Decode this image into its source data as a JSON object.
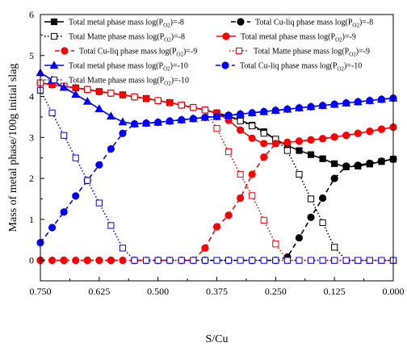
{
  "chart_data": {
    "type": "line",
    "title": "",
    "xlabel": "S/Cu",
    "ylabel": "Mass of metal phase/100g initial slag",
    "xlim": [
      0.75,
      0.0
    ],
    "x_reversed": true,
    "ylim": [
      -0.5,
      6
    ],
    "xticks": [
      "0.750",
      "0.625",
      "0.500",
      "0.375",
      "0.250",
      "0.125",
      "0.000"
    ],
    "yticks": [
      "0",
      "1",
      "2",
      "3",
      "4",
      "5",
      "6"
    ],
    "grid": false,
    "legend": "top",
    "series": [
      {
        "name": "Total metal phase mass log(P",
        "sub": "O2",
        "suffix": ")=-8",
        "color": "#000000",
        "line": "solid",
        "marker": "square-filled",
        "x": [
          0.75,
          0.725,
          0.7,
          0.675,
          0.65,
          0.625,
          0.6,
          0.575,
          0.55,
          0.525,
          0.5,
          0.475,
          0.45,
          0.425,
          0.4,
          0.375,
          0.35,
          0.325,
          0.3,
          0.275,
          0.25,
          0.225,
          0.2,
          0.175,
          0.15,
          0.125,
          0.1,
          0.075,
          0.05,
          0.025,
          0.0
        ],
        "y": [
          4.33,
          4.29,
          4.25,
          4.21,
          4.17,
          4.12,
          4.08,
          4.04,
          3.99,
          3.95,
          3.9,
          3.85,
          3.79,
          3.73,
          3.67,
          3.6,
          3.52,
          3.42,
          3.3,
          3.14,
          2.95,
          2.8,
          2.68,
          2.58,
          2.48,
          2.36,
          2.28,
          2.3,
          2.35,
          2.41,
          2.47
        ]
      },
      {
        "name": "Total Cu-liq phase mass log(P",
        "sub": "O2",
        "suffix": ")=-8",
        "color": "#000000",
        "line": "dashed",
        "marker": "circle-filled",
        "x": [
          0.75,
          0.7,
          0.65,
          0.6,
          0.55,
          0.5,
          0.45,
          0.4,
          0.35,
          0.3,
          0.25,
          0.225,
          0.2,
          0.175,
          0.15,
          0.125,
          0.1,
          0.075,
          0.05,
          0.025,
          0.0
        ],
        "y": [
          0,
          0,
          0,
          0,
          0,
          0,
          0,
          0,
          0,
          0,
          0,
          0.08,
          0.55,
          1.05,
          1.52,
          2.0,
          2.3,
          2.32,
          2.37,
          2.42,
          2.47
        ]
      },
      {
        "name": "Total Matte phase mass log(P",
        "sub": "O2",
        "suffix": ")=-8",
        "color": "#000000",
        "line": "dotted",
        "marker": "square-open",
        "x": [
          0.75,
          0.7,
          0.65,
          0.6,
          0.55,
          0.525,
          0.5,
          0.475,
          0.45,
          0.425,
          0.4,
          0.375,
          0.35,
          0.325,
          0.3,
          0.275,
          0.25,
          0.225,
          0.2,
          0.175,
          0.15,
          0.125,
          0.1,
          0.075,
          0.05,
          0.025,
          0.0
        ],
        "y": [
          4.33,
          4.25,
          4.17,
          4.08,
          3.99,
          3.95,
          3.9,
          3.85,
          3.79,
          3.73,
          3.67,
          3.58,
          3.5,
          3.4,
          3.28,
          3.1,
          2.96,
          2.68,
          2.1,
          1.5,
          0.92,
          0.32,
          0,
          0,
          0,
          0,
          0
        ]
      },
      {
        "name": "Total metal phase mass log(P",
        "sub": "O2",
        "suffix": ")=-9",
        "color": "#ff0000",
        "line": "solid",
        "marker": "circle-filled",
        "x": [
          0.75,
          0.725,
          0.7,
          0.675,
          0.65,
          0.625,
          0.6,
          0.575,
          0.55,
          0.525,
          0.5,
          0.475,
          0.45,
          0.425,
          0.4,
          0.375,
          0.35,
          0.325,
          0.3,
          0.275,
          0.25,
          0.225,
          0.2,
          0.175,
          0.15,
          0.125,
          0.1,
          0.075,
          0.05,
          0.025,
          0.0
        ],
        "y": [
          4.33,
          4.29,
          4.25,
          4.21,
          4.17,
          4.12,
          4.08,
          4.04,
          3.99,
          3.95,
          3.9,
          3.85,
          3.79,
          3.73,
          3.67,
          3.6,
          3.42,
          3.18,
          2.98,
          2.85,
          2.85,
          2.88,
          2.91,
          2.94,
          2.97,
          3.01,
          3.05,
          3.1,
          3.15,
          3.2,
          3.25
        ]
      },
      {
        "name": "Total Cu-liq phase mass log(P",
        "sub": "O2",
        "suffix": ")=-9",
        "color": "#ff0000",
        "line": "dashed",
        "marker": "circle-filled",
        "x": [
          0.75,
          0.725,
          0.7,
          0.675,
          0.65,
          0.625,
          0.6,
          0.575,
          0.55,
          0.525,
          0.5,
          0.475,
          0.45,
          0.425,
          0.4,
          0.375,
          0.35,
          0.325,
          0.3,
          0.275,
          0.25,
          0.225,
          0.2,
          0.175,
          0.15,
          0.125,
          0.1,
          0.075,
          0.05,
          0.025,
          0.0
        ],
        "y": [
          0,
          0,
          0,
          0,
          0,
          0,
          0,
          0,
          0,
          0,
          0,
          0,
          0,
          0,
          0.3,
          0.82,
          1.1,
          1.52,
          2.1,
          2.52,
          2.85,
          2.88,
          2.91,
          2.94,
          2.97,
          3.01,
          3.05,
          3.1,
          3.15,
          3.2,
          3.25
        ]
      },
      {
        "name": "Total Matte phase mass log(P",
        "sub": "O2",
        "suffix": ")=-9",
        "color": "#ff0000",
        "line": "dotted",
        "marker": "square-open",
        "x": [
          0.75,
          0.7,
          0.65,
          0.6,
          0.55,
          0.5,
          0.45,
          0.425,
          0.4,
          0.375,
          0.35,
          0.325,
          0.3,
          0.275,
          0.25,
          0.225,
          0.2,
          0.175,
          0.15,
          0.125,
          0.1,
          0.075,
          0.05,
          0.025,
          0.0
        ],
        "y": [
          4.33,
          4.25,
          4.17,
          4.08,
          3.99,
          3.9,
          3.79,
          3.73,
          3.67,
          3.22,
          2.65,
          2.1,
          1.58,
          0.98,
          0.4,
          0,
          0,
          0,
          0,
          0,
          0,
          0,
          0,
          0,
          0
        ]
      },
      {
        "name": "Total metal phase mass log(P",
        "sub": "O2",
        "suffix": ")=-10",
        "color": "#0000ff",
        "line": "solid",
        "marker": "triangle-filled",
        "x": [
          0.75,
          0.725,
          0.7,
          0.675,
          0.65,
          0.625,
          0.6,
          0.575,
          0.55,
          0.525,
          0.5,
          0.475,
          0.45,
          0.425,
          0.4,
          0.375,
          0.35,
          0.325,
          0.3,
          0.275,
          0.25,
          0.225,
          0.2,
          0.175,
          0.15,
          0.125,
          0.1,
          0.075,
          0.05,
          0.025,
          0.0
        ],
        "y": [
          4.58,
          4.4,
          4.22,
          4.05,
          3.88,
          3.7,
          3.52,
          3.38,
          3.33,
          3.35,
          3.37,
          3.4,
          3.43,
          3.46,
          3.49,
          3.51,
          3.54,
          3.57,
          3.6,
          3.63,
          3.66,
          3.69,
          3.72,
          3.75,
          3.78,
          3.81,
          3.84,
          3.87,
          3.9,
          3.93,
          3.96
        ]
      },
      {
        "name": "Total Cu-liq phase mass log(P",
        "sub": "O2",
        "suffix": ")=-10",
        "color": "#0000ff",
        "line": "dashed",
        "marker": "circle-filled",
        "x": [
          0.75,
          0.725,
          0.7,
          0.675,
          0.65,
          0.625,
          0.6,
          0.575,
          0.55,
          0.525,
          0.5,
          0.475,
          0.45,
          0.425,
          0.4,
          0.375,
          0.35,
          0.325,
          0.3,
          0.275,
          0.25,
          0.225,
          0.2,
          0.175,
          0.15,
          0.125,
          0.1,
          0.075,
          0.05,
          0.025,
          0.0
        ],
        "y": [
          0.43,
          0.8,
          1.18,
          1.57,
          1.95,
          2.33,
          2.72,
          3.1,
          3.33,
          3.35,
          3.37,
          3.4,
          3.43,
          3.46,
          3.49,
          3.51,
          3.54,
          3.57,
          3.6,
          3.63,
          3.66,
          3.69,
          3.72,
          3.75,
          3.78,
          3.81,
          3.84,
          3.87,
          3.9,
          3.93,
          3.96
        ]
      },
      {
        "name": "Total Matte phase mass log(P",
        "sub": "O2",
        "suffix": ")=-10",
        "color": "#0000ff",
        "line": "dotted",
        "marker": "square-open",
        "x": [
          0.75,
          0.725,
          0.7,
          0.675,
          0.65,
          0.625,
          0.6,
          0.575,
          0.55,
          0.525,
          0.5,
          0.475,
          0.45,
          0.425,
          0.4,
          0.375,
          0.35,
          0.325,
          0.3,
          0.275,
          0.25,
          0.225,
          0.2,
          0.175,
          0.15,
          0.125,
          0.1,
          0.075,
          0.05,
          0.025,
          0.0
        ],
        "y": [
          4.15,
          3.6,
          3.05,
          2.5,
          1.95,
          1.4,
          0.85,
          0.3,
          0,
          0,
          0,
          0,
          0,
          0,
          0,
          0,
          0,
          0,
          0,
          0,
          0,
          0,
          0,
          0,
          0,
          0,
          0,
          0,
          0,
          0,
          0
        ]
      }
    ]
  }
}
